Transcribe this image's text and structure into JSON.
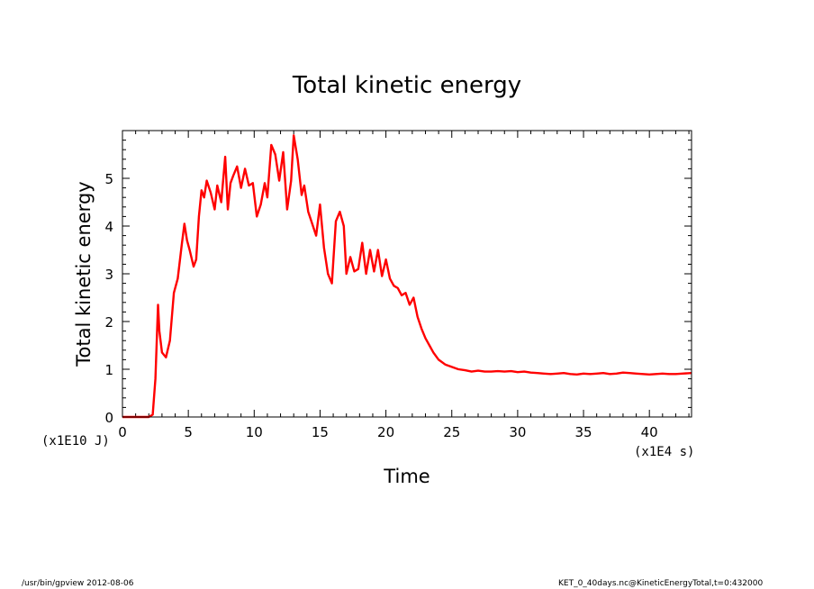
{
  "chart_data": {
    "type": "line",
    "title": "Total kinetic energy",
    "xlabel": "Time",
    "ylabel": "Total kinetic energy",
    "x_unit": "(x1E4 s)",
    "y_unit": "(x1E10 J)",
    "xlim": [
      0,
      43.2
    ],
    "ylim": [
      0,
      6
    ],
    "xticks": [
      0,
      5,
      10,
      15,
      20,
      25,
      30,
      35,
      40
    ],
    "yticks": [
      0,
      1,
      2,
      3,
      4,
      5
    ],
    "grid": false,
    "line_color": "#ff0000",
    "series": [
      {
        "x": [
          0,
          1,
          2,
          2.3,
          2.5,
          2.7,
          2.8,
          3.0,
          3.3,
          3.6,
          3.9,
          4.2,
          4.5,
          4.7,
          4.9,
          5.1,
          5.4,
          5.6,
          5.8,
          6.0,
          6.2,
          6.4,
          6.7,
          7.0,
          7.2,
          7.5,
          7.8,
          8.0,
          8.2,
          8.4,
          8.7,
          9.0,
          9.3,
          9.6,
          9.9,
          10.2,
          10.5,
          10.8,
          11.0,
          11.3,
          11.6,
          11.9,
          12.2,
          12.5,
          12.8,
          13.0,
          13.3,
          13.6,
          13.8,
          14.1,
          14.4,
          14.7,
          15.0,
          15.3,
          15.6,
          15.9,
          16.2,
          16.5,
          16.8,
          17.0,
          17.3,
          17.6,
          17.9,
          18.2,
          18.5,
          18.8,
          19.1,
          19.4,
          19.7,
          20.0,
          20.3,
          20.6,
          20.9,
          21.2,
          21.5,
          21.8,
          22.1,
          22.4,
          22.7,
          23.0,
          23.3,
          23.6,
          24.0,
          24.5,
          25.0,
          25.5,
          26.0,
          26.5,
          27.0,
          27.5,
          28.0,
          28.5,
          29.0,
          29.5,
          30.0,
          30.5,
          31.0,
          31.5,
          32.0,
          32.5,
          33.0,
          33.5,
          34.0,
          34.5,
          35.0,
          35.5,
          36.0,
          36.5,
          37.0,
          37.5,
          38.0,
          38.5,
          39.0,
          39.5,
          40.0,
          40.5,
          41.0,
          41.5,
          42.0,
          42.5,
          43.2
        ],
        "y": [
          0,
          0,
          0,
          0.05,
          0.8,
          2.35,
          1.8,
          1.35,
          1.25,
          1.6,
          2.6,
          2.9,
          3.6,
          4.05,
          3.7,
          3.5,
          3.15,
          3.3,
          4.2,
          4.75,
          4.6,
          4.95,
          4.7,
          4.35,
          4.85,
          4.5,
          5.45,
          4.35,
          4.9,
          5.05,
          5.25,
          4.8,
          5.2,
          4.85,
          4.9,
          4.2,
          4.45,
          4.9,
          4.6,
          5.7,
          5.5,
          4.95,
          5.55,
          4.35,
          4.95,
          5.9,
          5.4,
          4.65,
          4.85,
          4.3,
          4.05,
          3.8,
          4.45,
          3.55,
          3.0,
          2.8,
          4.1,
          4.3,
          4.0,
          3.0,
          3.35,
          3.05,
          3.1,
          3.65,
          3.0,
          3.5,
          3.05,
          3.5,
          2.95,
          3.3,
          2.9,
          2.75,
          2.7,
          2.55,
          2.6,
          2.35,
          2.5,
          2.1,
          1.85,
          1.65,
          1.5,
          1.35,
          1.2,
          1.1,
          1.05,
          1.0,
          0.98,
          0.95,
          0.97,
          0.95,
          0.95,
          0.96,
          0.95,
          0.96,
          0.94,
          0.95,
          0.93,
          0.92,
          0.91,
          0.9,
          0.91,
          0.92,
          0.9,
          0.89,
          0.91,
          0.9,
          0.91,
          0.92,
          0.9,
          0.91,
          0.93,
          0.92,
          0.91,
          0.9,
          0.89,
          0.9,
          0.91,
          0.9,
          0.9,
          0.91,
          0.92
        ]
      }
    ]
  },
  "footer": {
    "left": "/usr/bin/gpview  2012-08-06",
    "right": "KET_0_40days.nc@KineticEnergyTotal,t=0:432000"
  }
}
